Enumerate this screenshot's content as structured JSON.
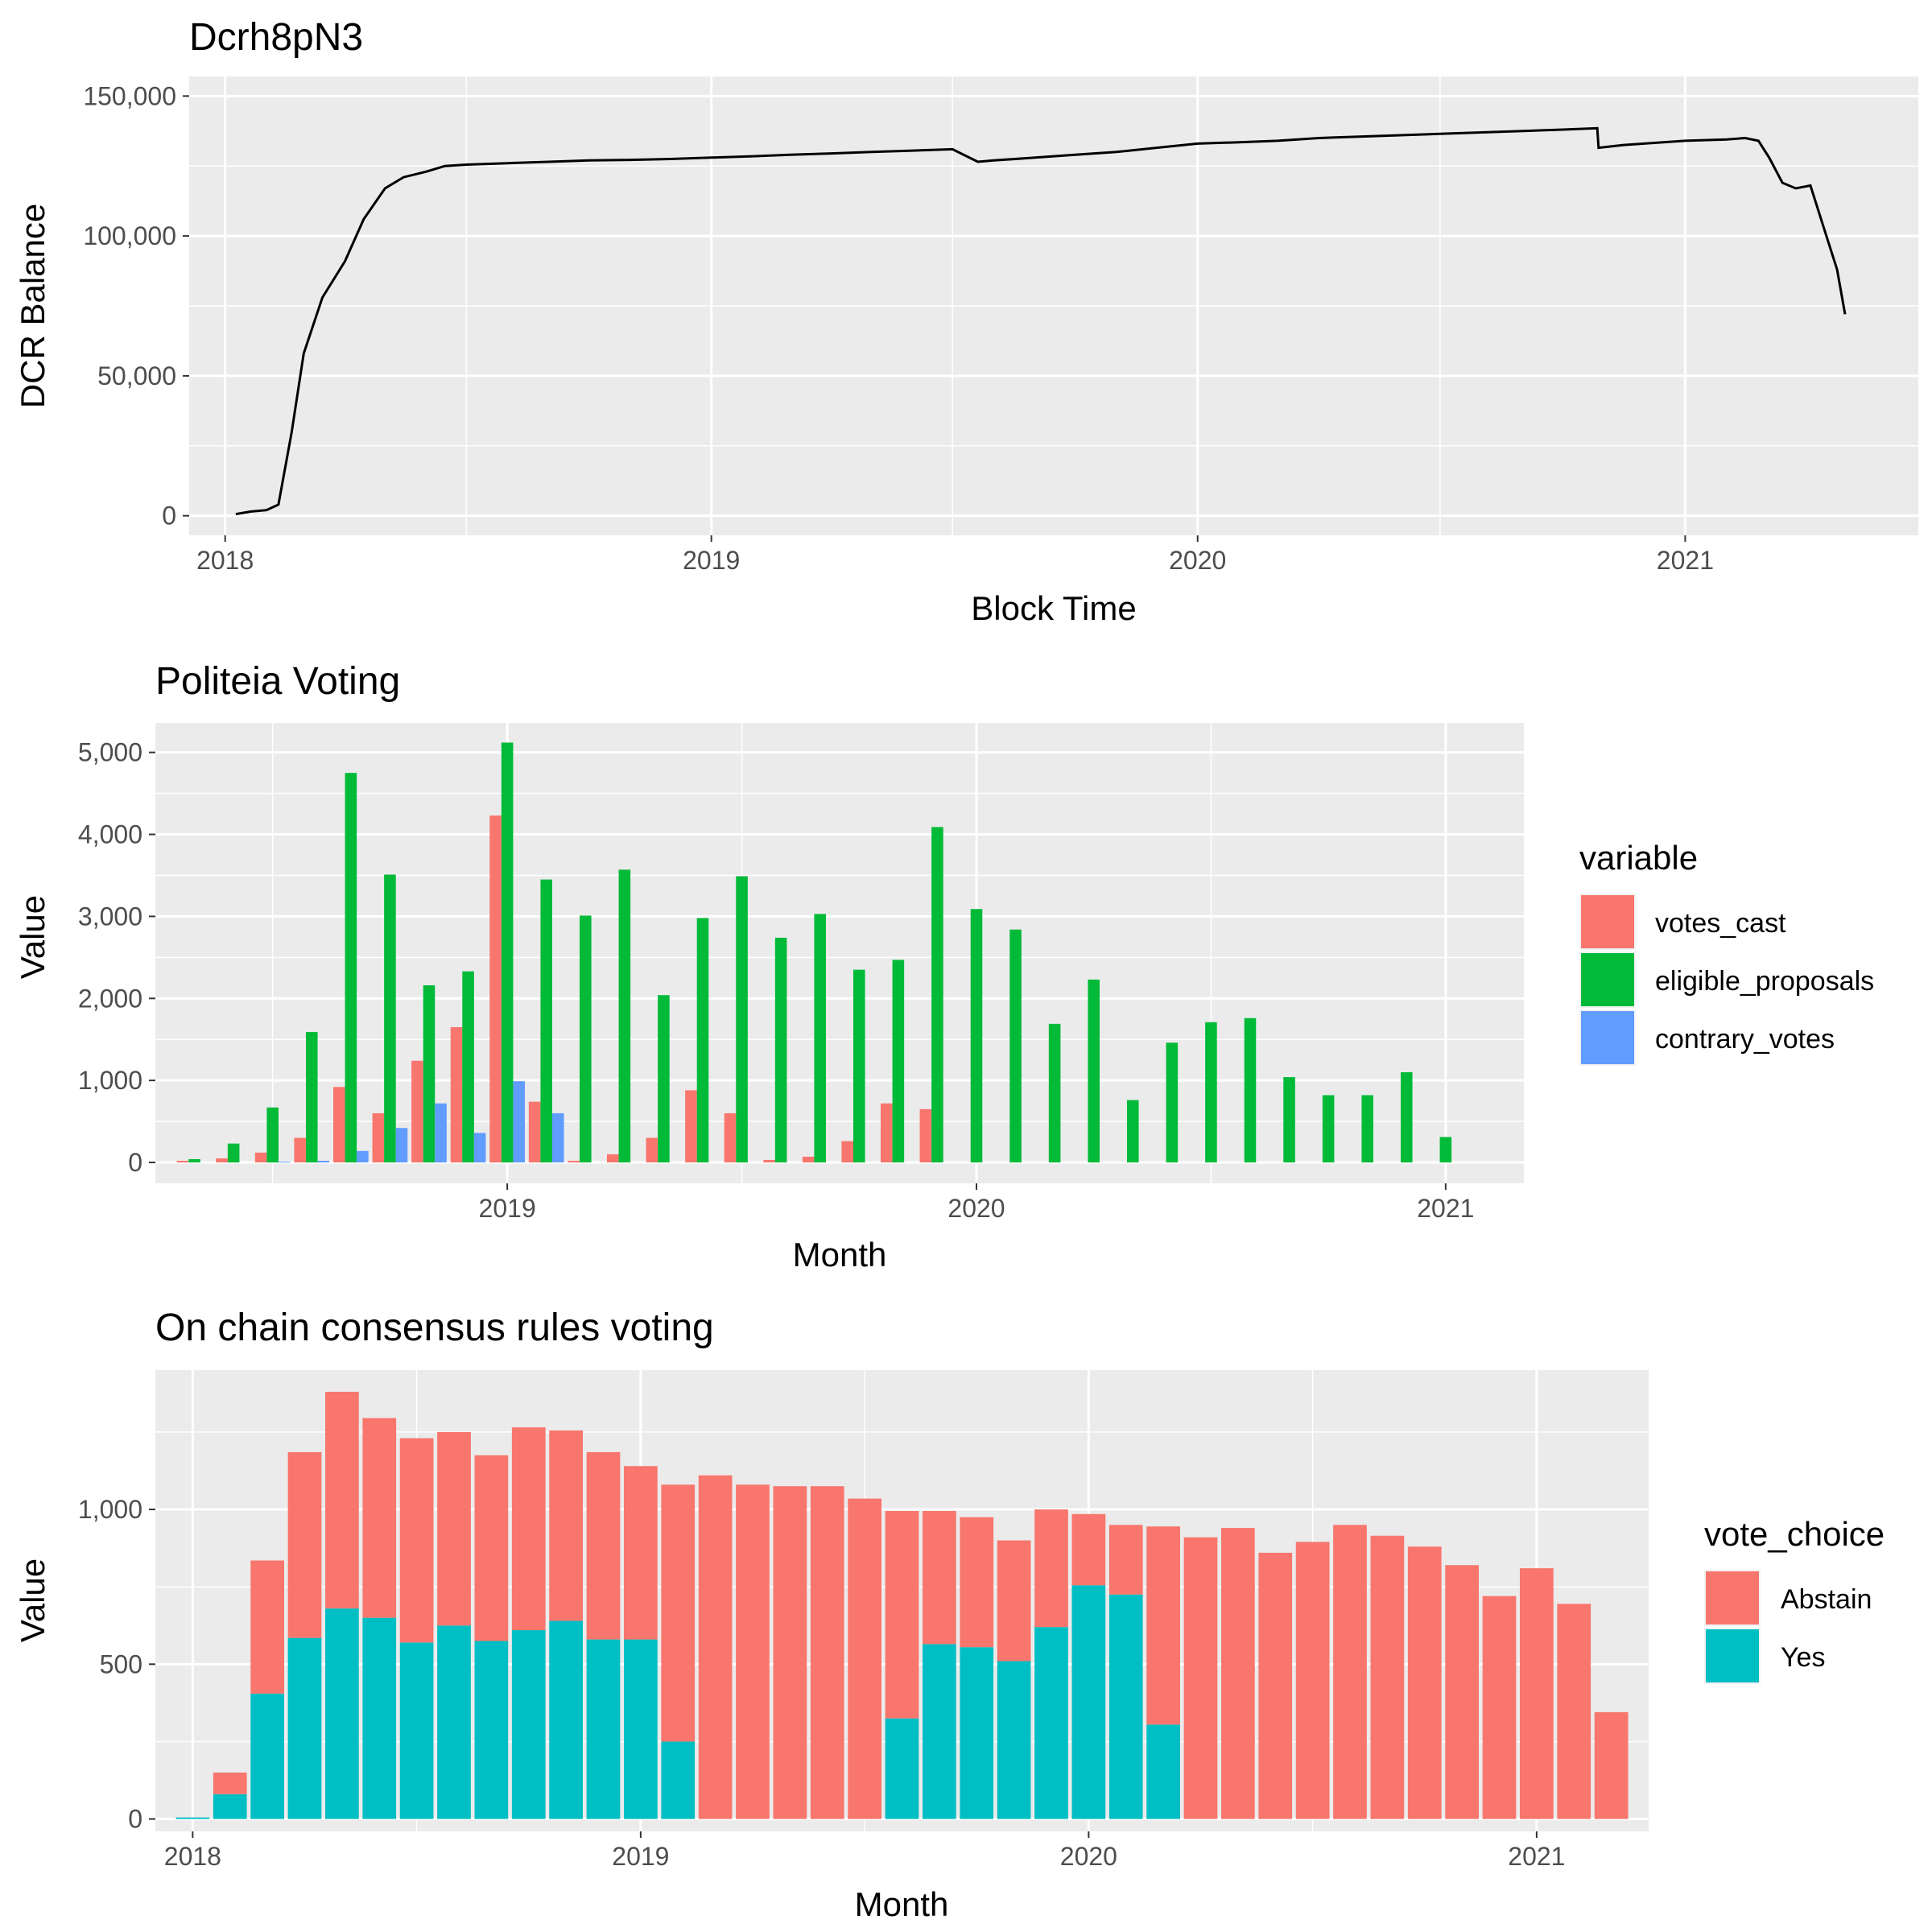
{
  "chart_data": [
    {
      "type": "line",
      "title": "Dcrh8pN3",
      "xlabel": "Block Time",
      "ylabel": "DCR Balance",
      "x_ticks": [
        "2018",
        "2019",
        "2020",
        "2021"
      ],
      "y_ticks": [
        "0",
        "50,000",
        "100,000",
        "150,000"
      ],
      "xlim": [
        "2017-12-05",
        "2021-06-25"
      ],
      "ylim": [
        -7000,
        157000
      ],
      "grid": true,
      "series": [
        {
          "x": [
            "2018-01-09",
            "2018-01-20",
            "2018-02-01",
            "2018-02-10",
            "2018-02-20",
            "2018-03-01",
            "2018-03-15",
            "2018-04-01",
            "2018-04-15",
            "2018-05-01",
            "2018-05-15",
            "2018-06-01",
            "2018-06-15",
            "2018-07-01",
            "2018-08-01",
            "2018-09-01",
            "2018-10-01",
            "2018-11-01",
            "2018-12-01",
            "2019-01-01",
            "2019-02-01",
            "2019-03-01",
            "2019-04-01",
            "2019-05-01",
            "2019-06-01",
            "2019-07-01",
            "2019-07-20",
            "2019-08-01",
            "2019-09-01",
            "2019-10-01",
            "2019-11-01",
            "2019-12-01",
            "2020-01-01",
            "2020-02-01",
            "2020-03-01",
            "2020-04-01",
            "2020-05-01",
            "2020-06-01",
            "2020-07-01",
            "2020-08-01",
            "2020-09-01",
            "2020-10-01",
            "2020-10-27",
            "2020-10-28",
            "2020-11-15",
            "2020-12-01",
            "2021-01-01",
            "2021-02-01",
            "2021-02-15",
            "2021-02-25",
            "2021-03-05",
            "2021-03-15",
            "2021-03-25",
            "2021-04-05",
            "2021-04-15",
            "2021-04-25",
            "2021-05-01"
          ],
          "y": [
            600,
            1500,
            2000,
            4000,
            30000,
            58000,
            78000,
            91000,
            106000,
            117000,
            121000,
            123000,
            125000,
            125500,
            126000,
            126500,
            127000,
            127200,
            127500,
            128000,
            128500,
            129000,
            129500,
            130000,
            130500,
            131000,
            126500,
            127000,
            128000,
            129000,
            130000,
            131500,
            133000,
            133500,
            134000,
            135000,
            135500,
            136000,
            136500,
            137000,
            137500,
            138000,
            138500,
            131500,
            132500,
            133000,
            134000,
            134500,
            135000,
            134000,
            128000,
            119000,
            117000,
            118000,
            103000,
            88000,
            72000
          ]
        }
      ]
    },
    {
      "type": "bar",
      "title": "Politeia Voting",
      "xlabel": "Month",
      "ylabel": "Value",
      "x_ticks": [
        "2019",
        "2020",
        "2021"
      ],
      "y_ticks": [
        "0",
        "1,000",
        "2,000",
        "3,000",
        "4,000",
        "5,000"
      ],
      "ylim": [
        -255,
        5360
      ],
      "grid": true,
      "legend": {
        "title": "variable",
        "position": "right"
      },
      "categories": [
        "2018-05",
        "2018-06",
        "2018-07",
        "2018-08",
        "2018-09",
        "2018-10",
        "2018-11",
        "2018-12",
        "2019-01",
        "2019-02",
        "2019-03",
        "2019-04",
        "2019-05",
        "2019-06",
        "2019-07",
        "2019-08",
        "2019-09",
        "2019-10",
        "2019-11",
        "2019-12",
        "2020-01",
        "2020-02",
        "2020-03",
        "2020-04",
        "2020-05",
        "2020-06",
        "2020-07",
        "2020-08",
        "2020-09",
        "2020-10",
        "2020-11",
        "2020-12",
        "2021-01",
        "2021-02"
      ],
      "series": [
        {
          "name": "votes_cast",
          "color": "#F8766D",
          "values": [
            20,
            50,
            120,
            300,
            920,
            600,
            1240,
            1650,
            4230,
            740,
            20,
            100,
            300,
            880,
            600,
            30,
            70,
            260,
            720,
            650,
            0,
            0,
            0,
            0,
            0,
            0,
            0,
            0,
            0,
            0,
            0,
            0,
            0,
            0
          ]
        },
        {
          "name": "eligible_proposals",
          "color": "#00BA38",
          "values": [
            40,
            230,
            670,
            1590,
            4750,
            3510,
            2160,
            2330,
            5120,
            3450,
            3010,
            3570,
            2040,
            2980,
            3490,
            2740,
            3030,
            2350,
            2470,
            4090,
            3090,
            2840,
            1690,
            2230,
            760,
            1460,
            1710,
            1760,
            1040,
            820,
            820,
            1100,
            310,
            0
          ]
        },
        {
          "name": "contrary_votes",
          "color": "#619CFF",
          "values": [
            0,
            0,
            10,
            20,
            140,
            420,
            720,
            360,
            990,
            600,
            0,
            0,
            0,
            0,
            0,
            0,
            0,
            0,
            0,
            0,
            0,
            0,
            0,
            0,
            0,
            0,
            0,
            0,
            0,
            0,
            0,
            0,
            0,
            0
          ]
        }
      ]
    },
    {
      "type": "bar",
      "title": "On chain consensus rules voting",
      "xlabel": "Month",
      "ylabel": "Value",
      "x_ticks": [
        "2018",
        "2019",
        "2020",
        "2021"
      ],
      "y_ticks": [
        "0",
        "500",
        "1,000"
      ],
      "ylim": [
        -40,
        1450
      ],
      "grid": true,
      "stacked": true,
      "legend": {
        "title": "vote_choice",
        "position": "right"
      },
      "categories": [
        "2018-01",
        "2018-02",
        "2018-03",
        "2018-04",
        "2018-05",
        "2018-06",
        "2018-07",
        "2018-08",
        "2018-09",
        "2018-10",
        "2018-11",
        "2018-12",
        "2019-01",
        "2019-02",
        "2019-03",
        "2019-04",
        "2019-05",
        "2019-06",
        "2019-07",
        "2019-08",
        "2019-09",
        "2019-10",
        "2019-11",
        "2019-12",
        "2020-01",
        "2020-02",
        "2020-03",
        "2020-04",
        "2020-05",
        "2020-06",
        "2020-07",
        "2020-08",
        "2020-09",
        "2020-10",
        "2020-11",
        "2020-12",
        "2021-01",
        "2021-02",
        "2021-03"
      ],
      "series": [
        {
          "name": "Yes",
          "color": "#00BFC4",
          "values": [
            5,
            80,
            405,
            585,
            680,
            650,
            570,
            625,
            575,
            610,
            640,
            580,
            580,
            250,
            0,
            0,
            0,
            0,
            0,
            325,
            565,
            555,
            510,
            620,
            755,
            725,
            305,
            0,
            0,
            0,
            0,
            0,
            0,
            0,
            0,
            0,
            0,
            0,
            0
          ]
        },
        {
          "name": "Abstain",
          "color": "#F8766D",
          "values": [
            0,
            70,
            430,
            600,
            700,
            645,
            660,
            625,
            600,
            655,
            615,
            605,
            560,
            830,
            1110,
            1080,
            1075,
            1075,
            1035,
            670,
            430,
            420,
            390,
            380,
            230,
            225,
            640,
            910,
            940,
            860,
            895,
            950,
            915,
            880,
            820,
            720,
            810,
            695,
            345
          ]
        }
      ]
    }
  ]
}
